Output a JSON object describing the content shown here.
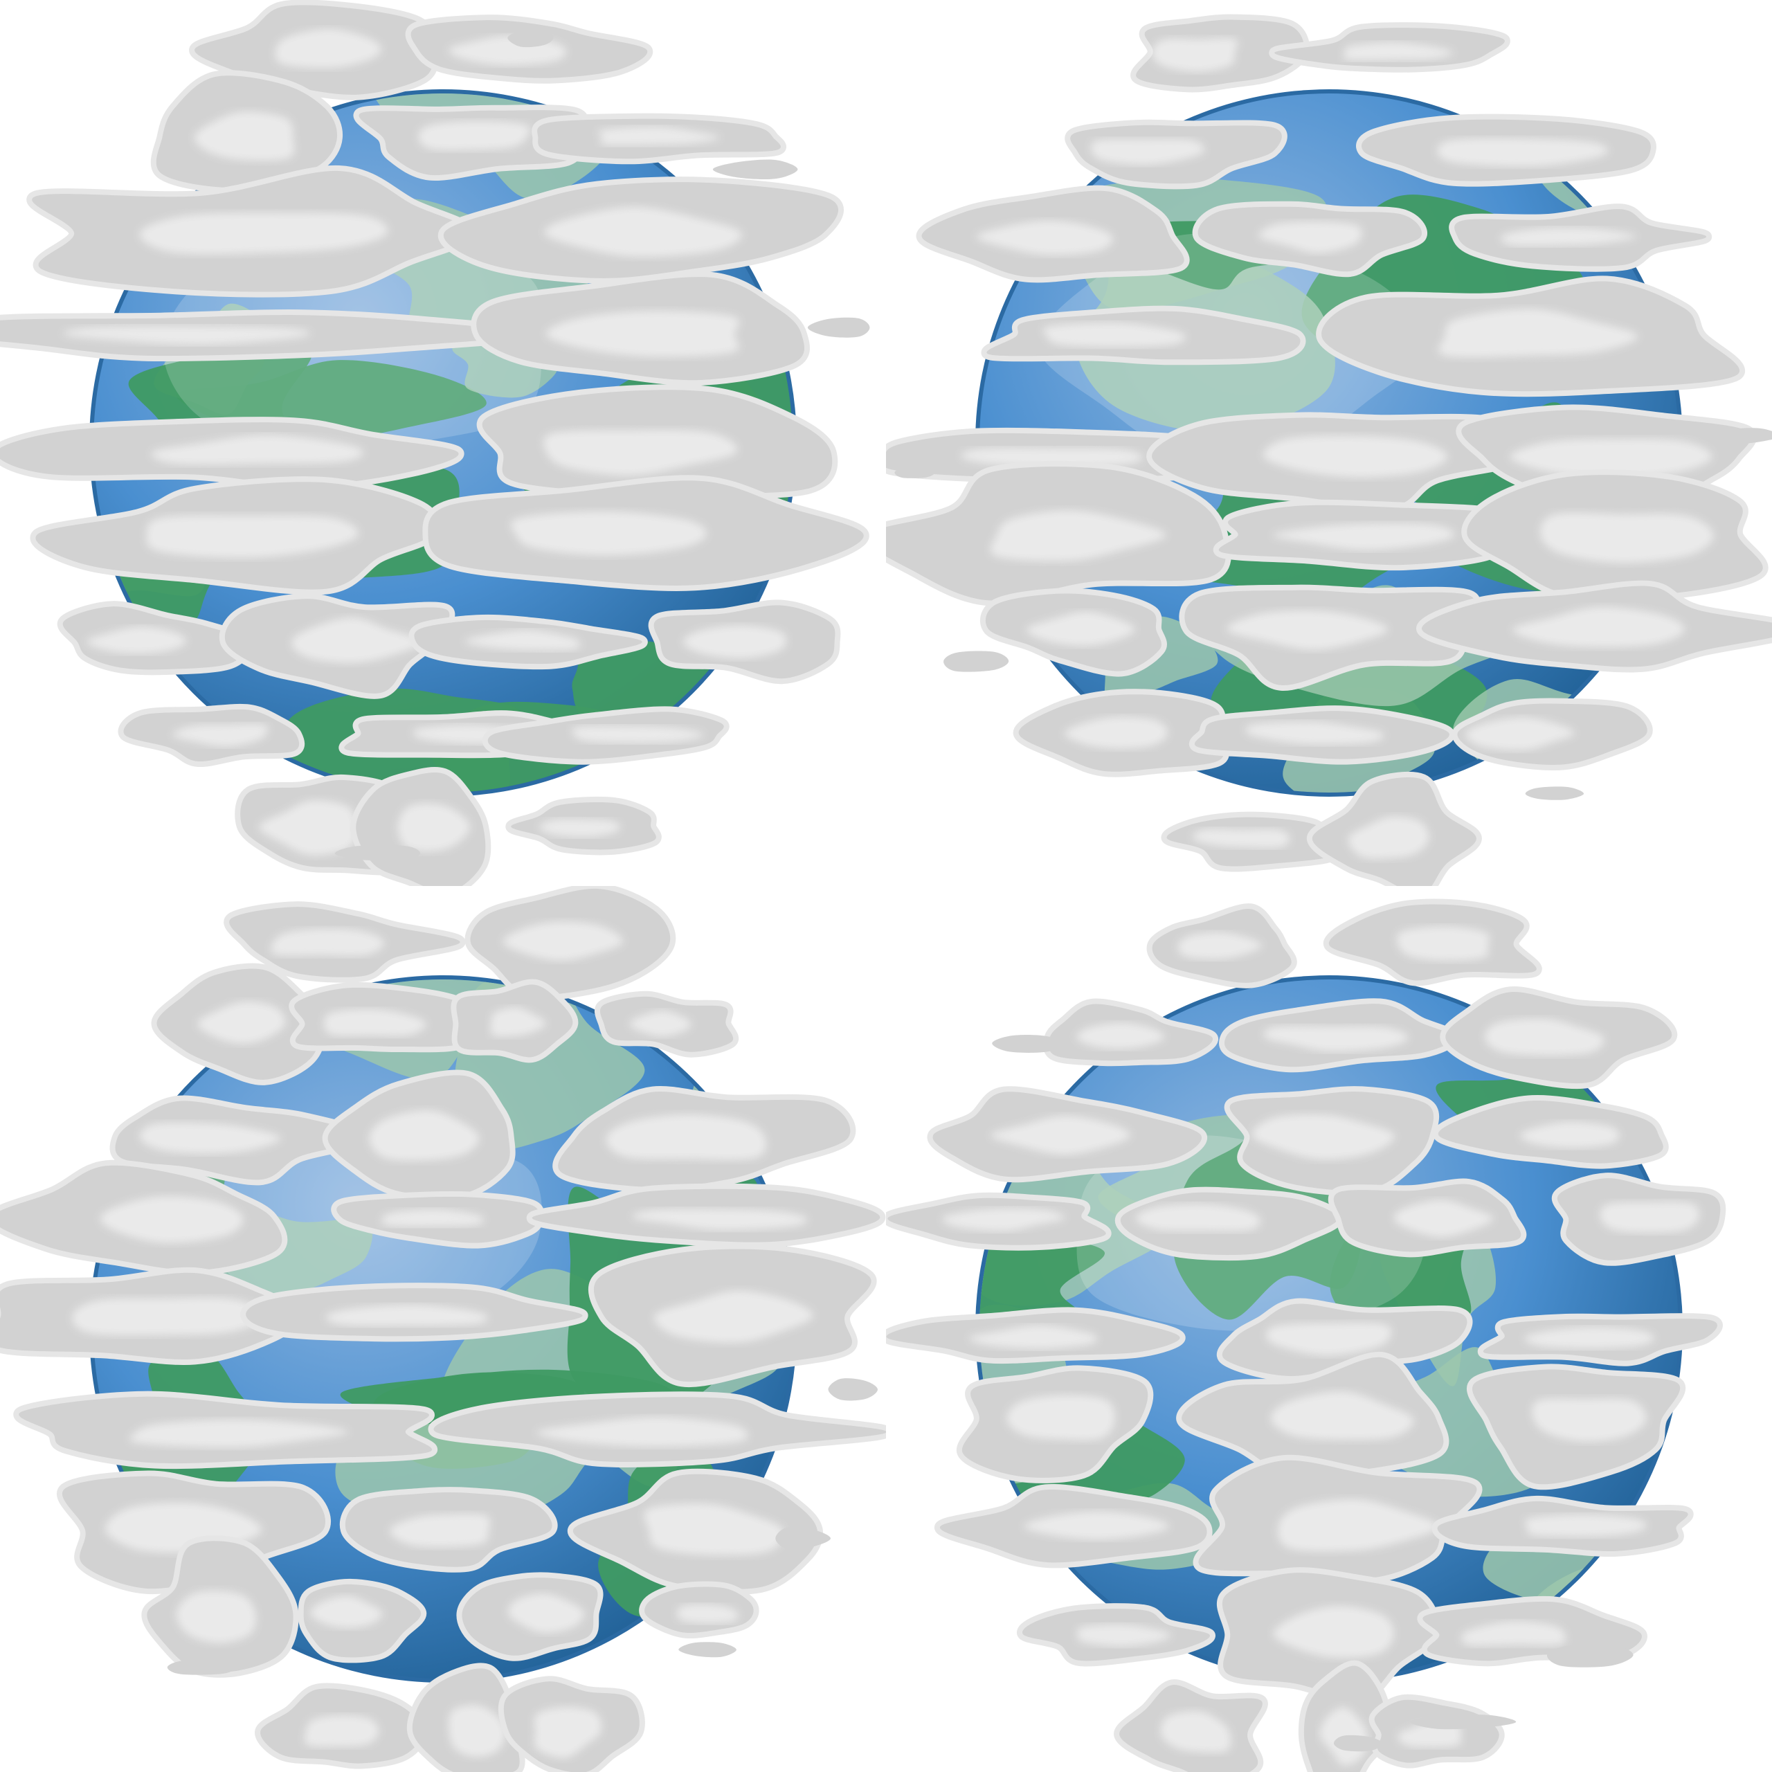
{
  "image": {
    "background": "#ffffff",
    "subject": "planet-sprite-sheet",
    "colors": {
      "ocean_light": "#8fb6e0",
      "ocean_mid": "#4a8fd0",
      "ocean_deep": "#1f5f94",
      "rim": "#2b6aa3",
      "land_dark": "#3f9a63",
      "land_light": "#9cc7ad",
      "cloud": "#d2d2d2",
      "cloud_edge": "#e6e6e6",
      "cloud_core": "#f1f1f1"
    },
    "tiles": [
      {
        "id": "tile-1",
        "label": "planet-frame-1",
        "cloud_variant": 0
      },
      {
        "id": "tile-2",
        "label": "planet-frame-2",
        "cloud_variant": 1
      },
      {
        "id": "tile-3",
        "label": "planet-frame-3",
        "cloud_variant": 2
      },
      {
        "id": "tile-4",
        "label": "planet-frame-4",
        "cloud_variant": 3
      }
    ]
  }
}
